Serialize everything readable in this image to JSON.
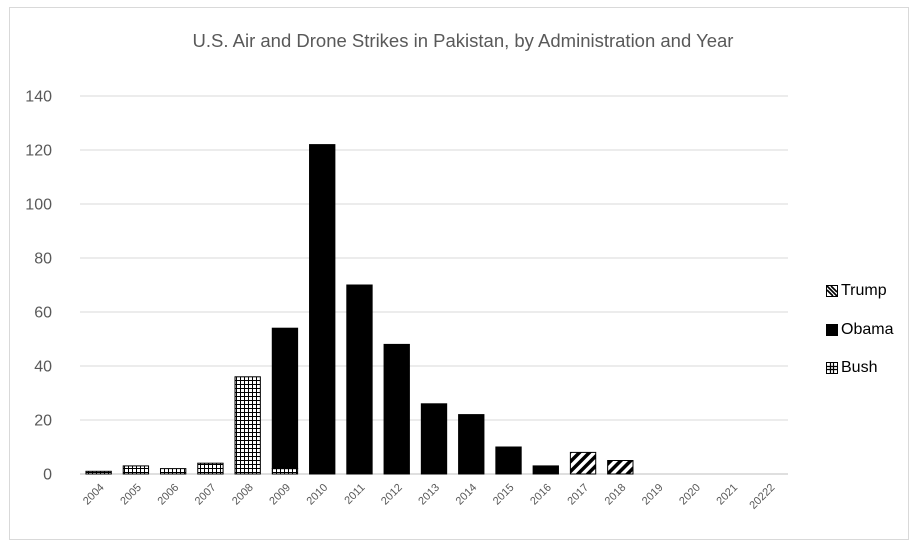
{
  "chart_data": {
    "type": "bar",
    "stacked": true,
    "title": "U.S. Air and Drone Strikes in Pakistan, by Administration and Year",
    "xlabel": "",
    "ylabel": "",
    "ylim": [
      0,
      140
    ],
    "yticks": [
      0,
      20,
      40,
      60,
      80,
      100,
      120,
      140
    ],
    "grid": "horizontal",
    "legend_position": "right",
    "categories": [
      "2004",
      "2005",
      "2006",
      "2007",
      "2008",
      "2009",
      "2010",
      "2011",
      "2012",
      "2013",
      "2014",
      "2015",
      "2016",
      "2017",
      "2018",
      "2019",
      "2020",
      "2021",
      "20222"
    ],
    "series": [
      {
        "name": "Bush",
        "pattern": "grid",
        "color": "#000000",
        "values": [
          1,
          3,
          2,
          4,
          36,
          2,
          0,
          0,
          0,
          0,
          0,
          0,
          0,
          0,
          0,
          0,
          0,
          0,
          0
        ]
      },
      {
        "name": "Obama",
        "pattern": "solid",
        "color": "#000000",
        "values": [
          0,
          0,
          0,
          0,
          0,
          52,
          122,
          70,
          48,
          26,
          22,
          10,
          3,
          0,
          0,
          0,
          0,
          0,
          0
        ]
      },
      {
        "name": "Trump",
        "pattern": "diagonal",
        "color": "#000000",
        "values": [
          0,
          0,
          0,
          0,
          0,
          0,
          0,
          0,
          0,
          0,
          0,
          0,
          0,
          8,
          5,
          0,
          0,
          0,
          0
        ]
      }
    ],
    "legend_order": [
      "Trump",
      "Obama",
      "Bush"
    ]
  }
}
